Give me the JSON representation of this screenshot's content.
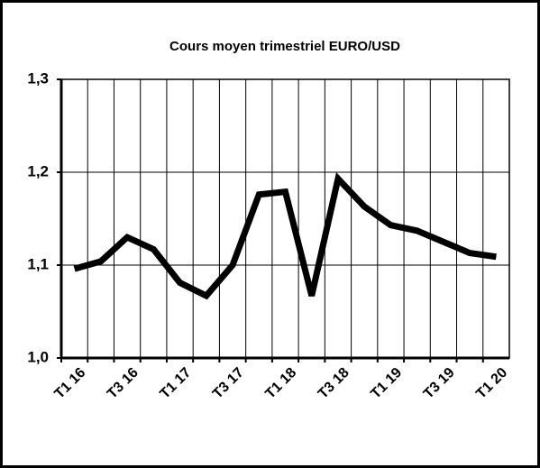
{
  "chart_data": {
    "type": "line",
    "title": "Cours moyen trimestriel EURO/USD",
    "categories": [
      "T1 16",
      null,
      "T3 16",
      null,
      "T1 17",
      null,
      "T3 17",
      null,
      "T1 18",
      null,
      "T3 18",
      null,
      "T1 19",
      null,
      "T3 19",
      null,
      "T1 20"
    ],
    "series": [
      {
        "name": "EURO/USD",
        "color": "#000000",
        "values": [
          1.096,
          1.104,
          1.13,
          1.117,
          1.081,
          1.067,
          1.1,
          1.176,
          1.179,
          1.067,
          1.193,
          1.163,
          1.143,
          1.137,
          1.125,
          1.113,
          1.109
        ]
      }
    ],
    "ylim": [
      1.0,
      1.3
    ],
    "yticks": [
      {
        "value": 1.0,
        "label": "1,0"
      },
      {
        "value": 1.1,
        "label": "1,1"
      },
      {
        "value": 1.2,
        "label": "1,2"
      },
      {
        "value": 1.3,
        "label": "1,3"
      }
    ],
    "grid": true
  }
}
